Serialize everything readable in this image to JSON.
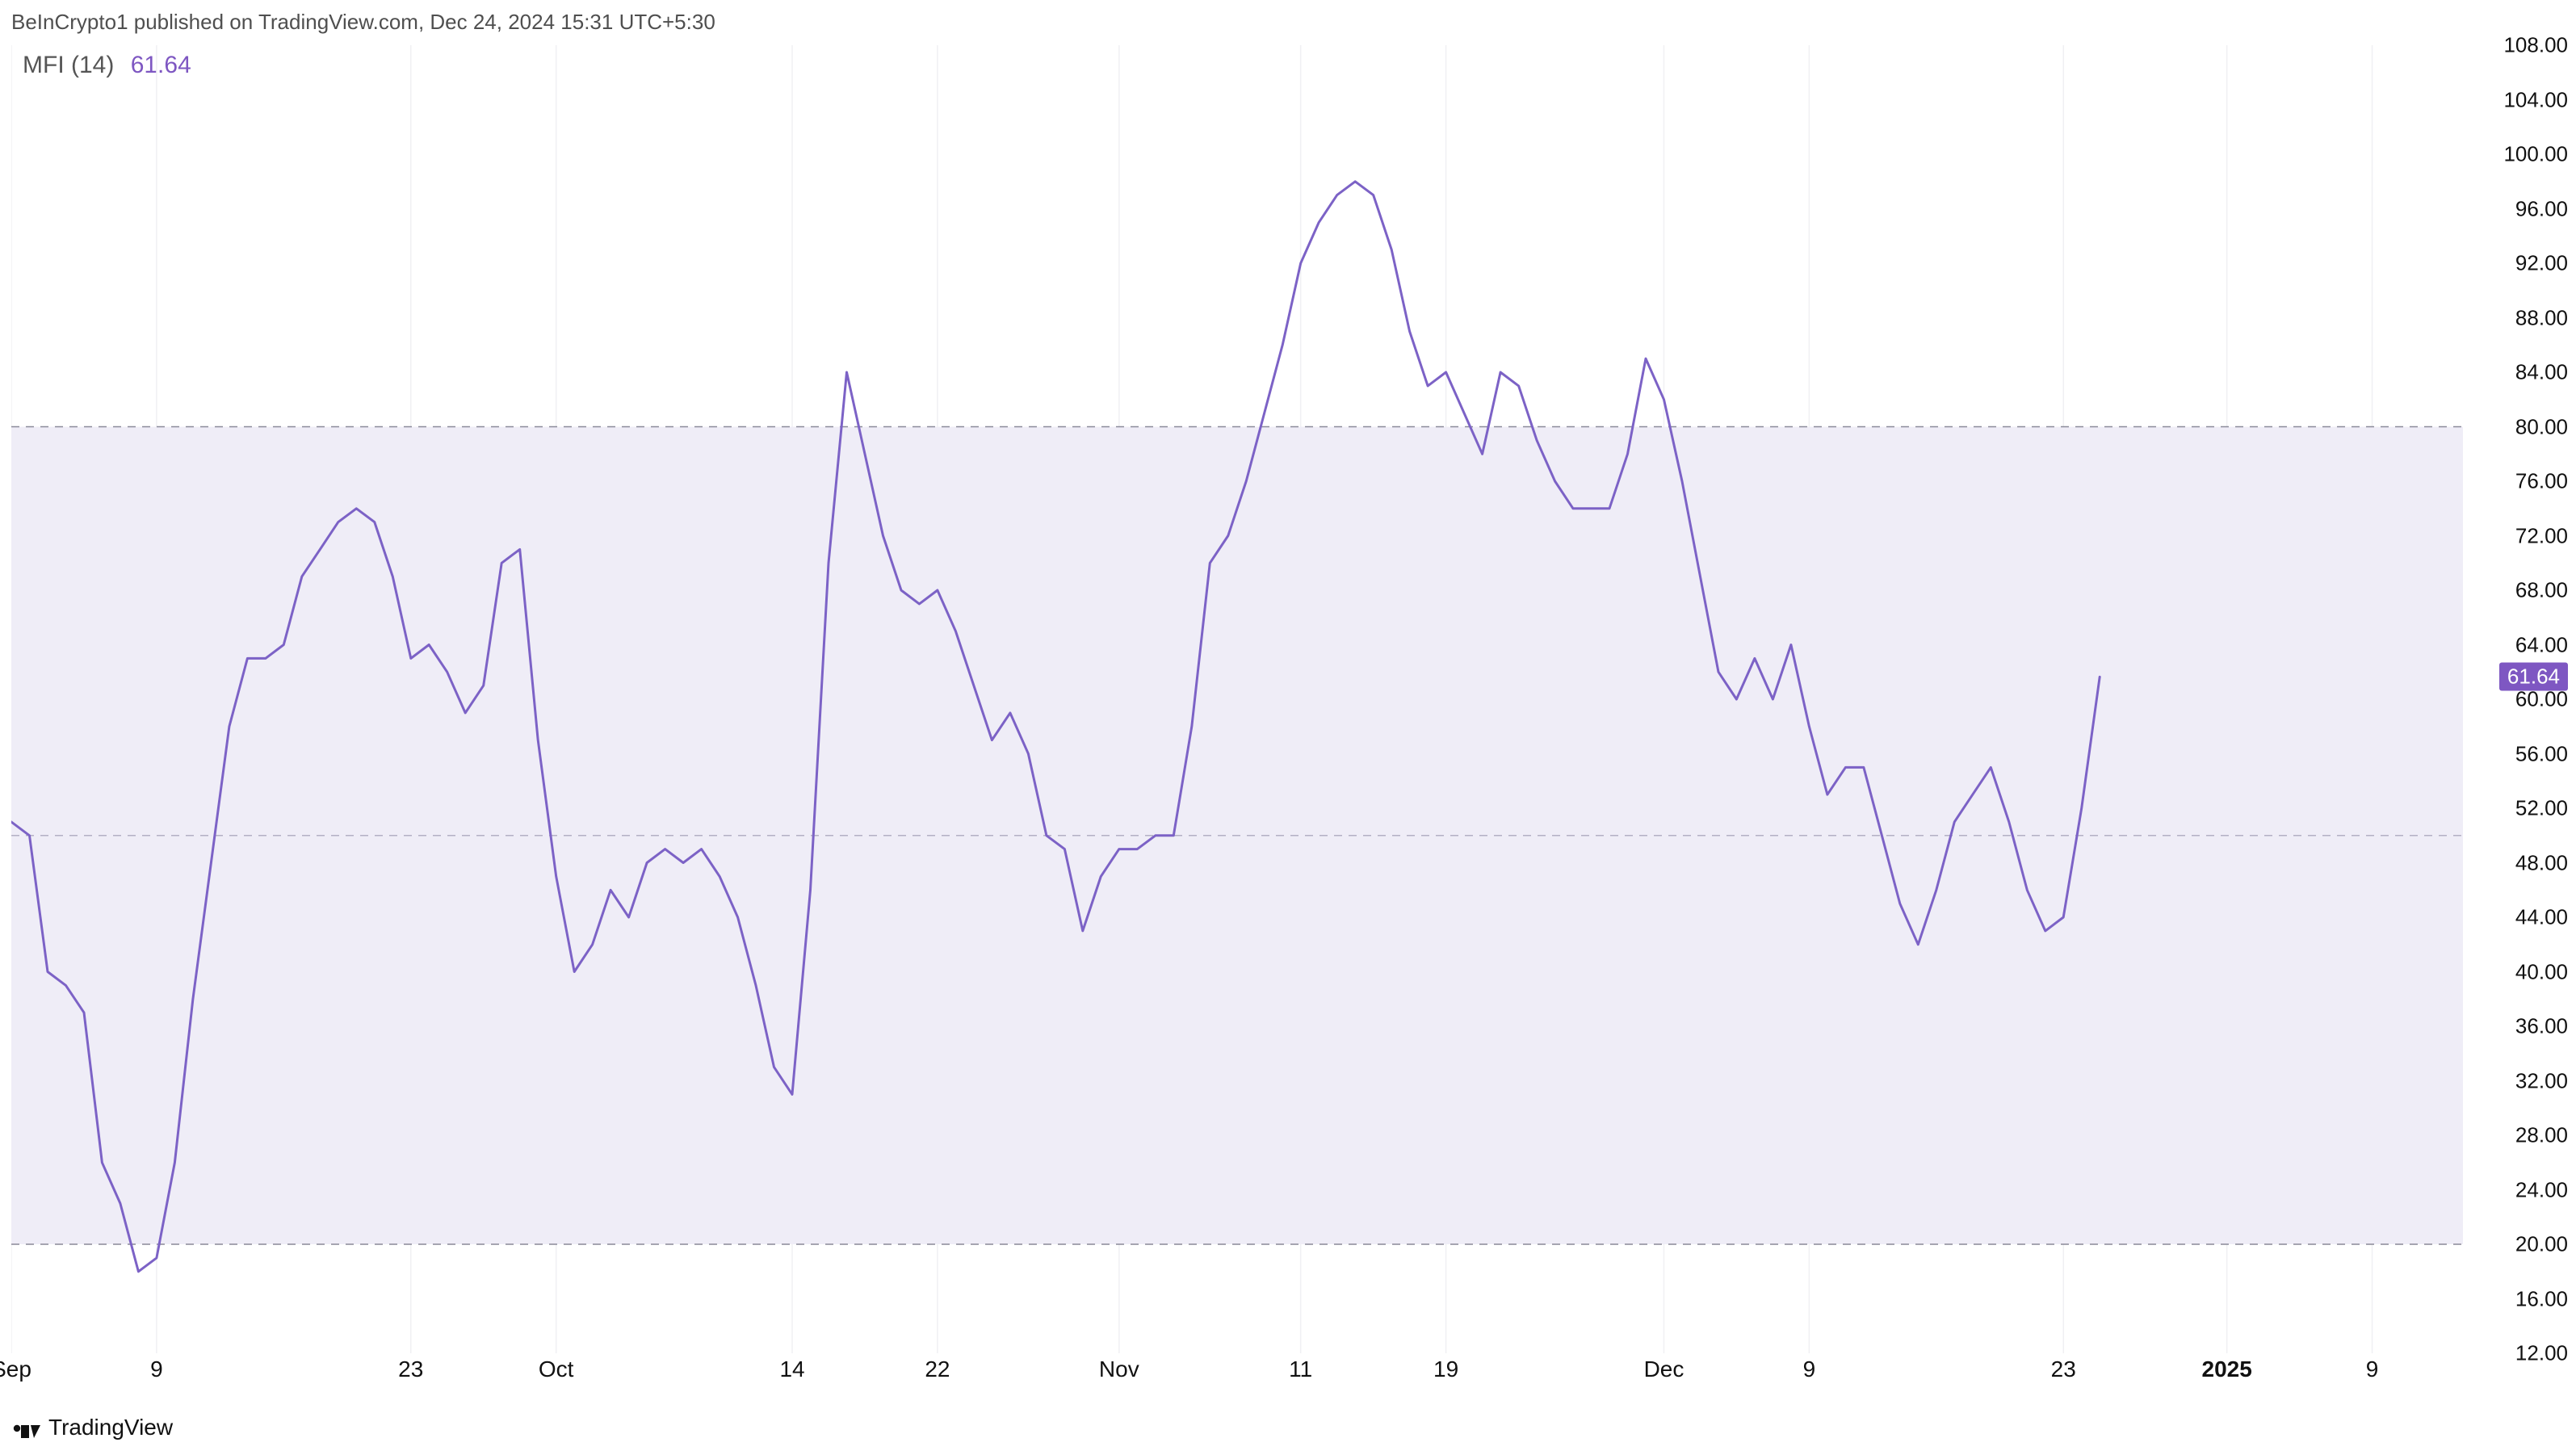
{
  "attribution": "BeInCrypto1 published on TradingView.com, Dec 24, 2024 15:31 UTC+5:30",
  "indicator": {
    "name": "MFI (14)",
    "value": "61.64"
  },
  "footer": {
    "brand": "TradingView"
  },
  "chart": {
    "type": "line",
    "line_color": "#7c62c6",
    "line_width": 3,
    "background_color": "#ffffff",
    "band": {
      "upper": 80,
      "lower": 20,
      "mid": 50,
      "fill_color": "#efedf7",
      "border_color": "#8a8a99",
      "border_dash": "10 8",
      "mid_color": "#b3b0c4"
    },
    "current_value": 61.64,
    "current_badge_bg": "#7e57c2",
    "current_badge_fg": "#ffffff",
    "y": {
      "min": 12,
      "max": 108,
      "step": 4,
      "tick_fontsize": 26,
      "tick_color": "#111111",
      "ticks": [
        108,
        104,
        100,
        96,
        92,
        88,
        84,
        80,
        76,
        72,
        68,
        64,
        60,
        56,
        52,
        48,
        44,
        40,
        36,
        32,
        28,
        24,
        20,
        16,
        12
      ],
      "labels": [
        "108.00",
        "104.00",
        "100.00",
        "96.00",
        "92.00",
        "88.00",
        "84.00",
        "80.00",
        "76.00",
        "72.00",
        "68.00",
        "64.00",
        "60.00",
        "56.00",
        "52.00",
        "48.00",
        "44.00",
        "40.00",
        "36.00",
        "32.00",
        "28.00",
        "24.00",
        "20.00",
        "16.00",
        "12.00"
      ]
    },
    "x": {
      "min": 0,
      "max": 135,
      "tick_fontsize": 28,
      "tick_color": "#111111",
      "grid_color": "#f0f0f3",
      "ticks": [
        {
          "pos": 0,
          "label": "Sep",
          "bold": false
        },
        {
          "pos": 8,
          "label": "9",
          "bold": false
        },
        {
          "pos": 22,
          "label": "23",
          "bold": false
        },
        {
          "pos": 30,
          "label": "Oct",
          "bold": false
        },
        {
          "pos": 43,
          "label": "14",
          "bold": false
        },
        {
          "pos": 51,
          "label": "22",
          "bold": false
        },
        {
          "pos": 61,
          "label": "Nov",
          "bold": false
        },
        {
          "pos": 71,
          "label": "11",
          "bold": false
        },
        {
          "pos": 79,
          "label": "19",
          "bold": false
        },
        {
          "pos": 91,
          "label": "Dec",
          "bold": false
        },
        {
          "pos": 99,
          "label": "9",
          "bold": false
        },
        {
          "pos": 113,
          "label": "23",
          "bold": false
        },
        {
          "pos": 122,
          "label": "2025",
          "bold": true
        },
        {
          "pos": 130,
          "label": "9",
          "bold": false
        }
      ]
    },
    "series": [
      {
        "x": 0,
        "y": 51
      },
      {
        "x": 1,
        "y": 50
      },
      {
        "x": 2,
        "y": 40
      },
      {
        "x": 3,
        "y": 39
      },
      {
        "x": 4,
        "y": 37
      },
      {
        "x": 5,
        "y": 26
      },
      {
        "x": 6,
        "y": 23
      },
      {
        "x": 7,
        "y": 18
      },
      {
        "x": 8,
        "y": 19
      },
      {
        "x": 9,
        "y": 26
      },
      {
        "x": 10,
        "y": 38
      },
      {
        "x": 11,
        "y": 48
      },
      {
        "x": 12,
        "y": 58
      },
      {
        "x": 13,
        "y": 63
      },
      {
        "x": 14,
        "y": 63
      },
      {
        "x": 15,
        "y": 64
      },
      {
        "x": 16,
        "y": 69
      },
      {
        "x": 17,
        "y": 71
      },
      {
        "x": 18,
        "y": 73
      },
      {
        "x": 19,
        "y": 74
      },
      {
        "x": 20,
        "y": 73
      },
      {
        "x": 21,
        "y": 69
      },
      {
        "x": 22,
        "y": 63
      },
      {
        "x": 23,
        "y": 64
      },
      {
        "x": 24,
        "y": 62
      },
      {
        "x": 25,
        "y": 59
      },
      {
        "x": 26,
        "y": 61
      },
      {
        "x": 27,
        "y": 70
      },
      {
        "x": 28,
        "y": 71
      },
      {
        "x": 29,
        "y": 57
      },
      {
        "x": 30,
        "y": 47
      },
      {
        "x": 31,
        "y": 40
      },
      {
        "x": 32,
        "y": 42
      },
      {
        "x": 33,
        "y": 46
      },
      {
        "x": 34,
        "y": 44
      },
      {
        "x": 35,
        "y": 48
      },
      {
        "x": 36,
        "y": 49
      },
      {
        "x": 37,
        "y": 48
      },
      {
        "x": 38,
        "y": 49
      },
      {
        "x": 39,
        "y": 47
      },
      {
        "x": 40,
        "y": 44
      },
      {
        "x": 41,
        "y": 39
      },
      {
        "x": 42,
        "y": 33
      },
      {
        "x": 43,
        "y": 31
      },
      {
        "x": 44,
        "y": 46
      },
      {
        "x": 45,
        "y": 70
      },
      {
        "x": 46,
        "y": 84
      },
      {
        "x": 47,
        "y": 78
      },
      {
        "x": 48,
        "y": 72
      },
      {
        "x": 49,
        "y": 68
      },
      {
        "x": 50,
        "y": 67
      },
      {
        "x": 51,
        "y": 68
      },
      {
        "x": 52,
        "y": 65
      },
      {
        "x": 53,
        "y": 61
      },
      {
        "x": 54,
        "y": 57
      },
      {
        "x": 55,
        "y": 59
      },
      {
        "x": 56,
        "y": 56
      },
      {
        "x": 57,
        "y": 50
      },
      {
        "x": 58,
        "y": 49
      },
      {
        "x": 59,
        "y": 43
      },
      {
        "x": 60,
        "y": 47
      },
      {
        "x": 61,
        "y": 49
      },
      {
        "x": 62,
        "y": 49
      },
      {
        "x": 63,
        "y": 50
      },
      {
        "x": 64,
        "y": 50
      },
      {
        "x": 65,
        "y": 58
      },
      {
        "x": 66,
        "y": 70
      },
      {
        "x": 67,
        "y": 72
      },
      {
        "x": 68,
        "y": 76
      },
      {
        "x": 69,
        "y": 81
      },
      {
        "x": 70,
        "y": 86
      },
      {
        "x": 71,
        "y": 92
      },
      {
        "x": 72,
        "y": 95
      },
      {
        "x": 73,
        "y": 97
      },
      {
        "x": 74,
        "y": 98
      },
      {
        "x": 75,
        "y": 97
      },
      {
        "x": 76,
        "y": 93
      },
      {
        "x": 77,
        "y": 87
      },
      {
        "x": 78,
        "y": 83
      },
      {
        "x": 79,
        "y": 84
      },
      {
        "x": 80,
        "y": 81
      },
      {
        "x": 81,
        "y": 78
      },
      {
        "x": 82,
        "y": 84
      },
      {
        "x": 83,
        "y": 83
      },
      {
        "x": 84,
        "y": 79
      },
      {
        "x": 85,
        "y": 76
      },
      {
        "x": 86,
        "y": 74
      },
      {
        "x": 87,
        "y": 74
      },
      {
        "x": 88,
        "y": 74
      },
      {
        "x": 89,
        "y": 78
      },
      {
        "x": 90,
        "y": 85
      },
      {
        "x": 91,
        "y": 82
      },
      {
        "x": 92,
        "y": 76
      },
      {
        "x": 93,
        "y": 69
      },
      {
        "x": 94,
        "y": 62
      },
      {
        "x": 95,
        "y": 60
      },
      {
        "x": 96,
        "y": 63
      },
      {
        "x": 97,
        "y": 60
      },
      {
        "x": 98,
        "y": 64
      },
      {
        "x": 99,
        "y": 58
      },
      {
        "x": 100,
        "y": 53
      },
      {
        "x": 101,
        "y": 55
      },
      {
        "x": 102,
        "y": 55
      },
      {
        "x": 103,
        "y": 50
      },
      {
        "x": 104,
        "y": 45
      },
      {
        "x": 105,
        "y": 42
      },
      {
        "x": 106,
        "y": 46
      },
      {
        "x": 107,
        "y": 51
      },
      {
        "x": 108,
        "y": 53
      },
      {
        "x": 109,
        "y": 55
      },
      {
        "x": 110,
        "y": 51
      },
      {
        "x": 111,
        "y": 46
      },
      {
        "x": 112,
        "y": 43
      },
      {
        "x": 113,
        "y": 44
      },
      {
        "x": 114,
        "y": 52
      },
      {
        "x": 115,
        "y": 61.64
      }
    ]
  }
}
